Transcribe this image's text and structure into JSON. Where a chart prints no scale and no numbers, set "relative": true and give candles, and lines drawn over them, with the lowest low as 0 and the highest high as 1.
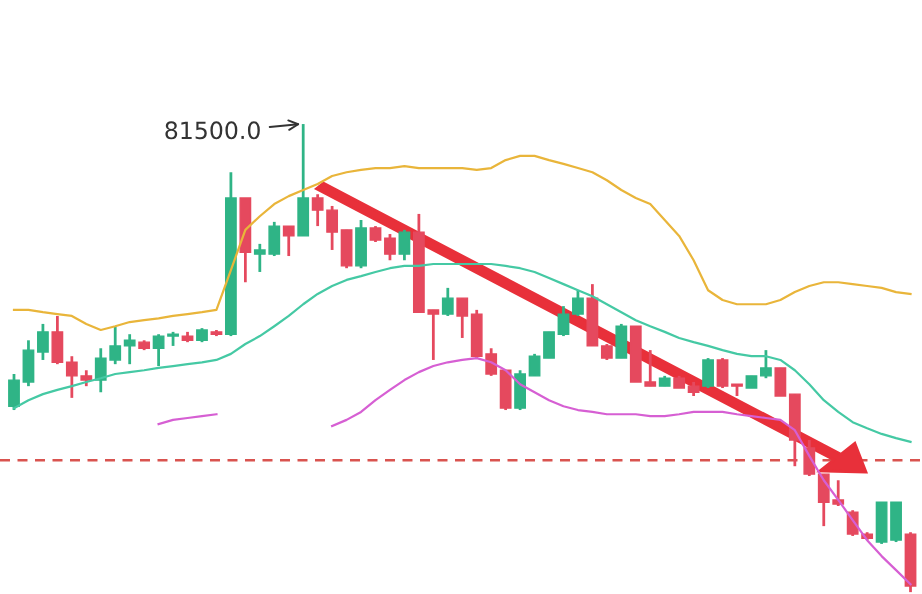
{
  "chart_data": {
    "type": "candlestick",
    "relative": true,
    "categories": [
      null,
      null,
      null,
      null,
      null,
      null,
      null,
      null,
      null,
      null,
      null,
      null,
      null,
      null,
      null,
      null,
      null,
      null,
      null,
      null,
      null,
      null,
      null,
      null,
      null,
      null,
      null,
      null,
      null,
      null,
      null,
      null,
      null,
      null,
      null,
      null,
      null,
      null,
      null,
      null,
      null,
      null,
      null,
      null,
      null,
      null,
      null,
      null,
      null,
      null,
      null,
      null,
      null,
      null,
      null,
      null,
      null,
      null,
      null,
      null,
      null,
      null,
      null
    ],
    "ohlc": [
      [
        0.397,
        0.466,
        0.389,
        0.453
      ],
      [
        0.449,
        0.538,
        0.44,
        0.517
      ],
      [
        0.513,
        0.573,
        0.496,
        0.556
      ],
      [
        0.556,
        0.59,
        0.487,
        0.491
      ],
      [
        0.491,
        0.504,
        0.415,
        0.462
      ],
      [
        0.462,
        0.474,
        0.44,
        0.453
      ],
      [
        0.453,
        0.521,
        0.427,
        0.5
      ],
      [
        0.496,
        0.568,
        0.487,
        0.526
      ],
      [
        0.526,
        0.551,
        0.487,
        0.538
      ],
      [
        0.534,
        0.538,
        0.517,
        0.521
      ],
      [
        0.521,
        0.551,
        0.483,
        0.547
      ],
      [
        0.547,
        0.556,
        0.526,
        0.551
      ],
      [
        0.547,
        0.556,
        0.534,
        0.538
      ],
      [
        0.538,
        0.564,
        0.534,
        0.56
      ],
      [
        0.556,
        0.56,
        0.547,
        0.551
      ],
      [
        0.551,
        0.897,
        0.547,
        0.842
      ],
      [
        0.842,
        0.842,
        0.662,
        0.726
      ],
      [
        0.722,
        0.744,
        0.684,
        0.731
      ],
      [
        0.722,
        0.791,
        0.718,
        0.782
      ],
      [
        0.782,
        0.782,
        0.718,
        0.761
      ],
      [
        0.761,
        1,
        0.761,
        0.842
      ],
      [
        0.842,
        0.85,
        0.782,
        0.816
      ],
      [
        0.816,
        0.825,
        0.731,
        0.769
      ],
      [
        0.774,
        0.774,
        0.692,
        0.697
      ],
      [
        0.697,
        0.795,
        0.692,
        0.778
      ],
      [
        0.778,
        0.782,
        0.748,
        0.752
      ],
      [
        0.756,
        0.765,
        0.709,
        0.722
      ],
      [
        0.722,
        0.774,
        0.709,
        0.769
      ],
      [
        0.769,
        0.808,
        0.598,
        0.598
      ],
      [
        0.603,
        0.603,
        0.496,
        0.594
      ],
      [
        0.594,
        0.65,
        0.59,
        0.628
      ],
      [
        0.628,
        0.628,
        0.543,
        0.59
      ],
      [
        0.594,
        0.603,
        0.5,
        0.504
      ],
      [
        0.509,
        0.521,
        0.462,
        0.466
      ],
      [
        0.474,
        0.474,
        0.389,
        0.393
      ],
      [
        0.393,
        0.474,
        0.389,
        0.466
      ],
      [
        0.462,
        0.509,
        0.462,
        0.504
      ],
      [
        0.5,
        0.556,
        0.5,
        0.556
      ],
      [
        0.551,
        0.611,
        0.547,
        0.594
      ],
      [
        0.594,
        0.645,
        0.59,
        0.628
      ],
      [
        0.628,
        0.658,
        0.526,
        0.526
      ],
      [
        0.526,
        0.53,
        0.496,
        0.5
      ],
      [
        0.5,
        0.573,
        0.5,
        0.568
      ],
      [
        0.568,
        0.568,
        0.449,
        0.449
      ],
      [
        0.449,
        0.517,
        0.44,
        0.44
      ],
      [
        0.44,
        0.462,
        0.44,
        0.457
      ],
      [
        0.457,
        0.462,
        0.436,
        0.436
      ],
      [
        0.44,
        0.449,
        0.419,
        0.427
      ],
      [
        0.44,
        0.5,
        0.436,
        0.496
      ],
      [
        0.496,
        0.5,
        0.436,
        0.44
      ],
      [
        0.444,
        0.444,
        0.419,
        0.44
      ],
      [
        0.436,
        0.462,
        0.436,
        0.462
      ],
      [
        0.462,
        0.517,
        0.457,
        0.479
      ],
      [
        0.479,
        0.479,
        0.419,
        0.419
      ],
      [
        0.423,
        0.423,
        0.269,
        0.325
      ],
      [
        0.308,
        0.325,
        0.248,
        0.252
      ],
      [
        0.252,
        0.252,
        0.141,
        0.192
      ],
      [
        0.197,
        0.239,
        0.184,
        0.188
      ],
      [
        0.171,
        0.175,
        0.12,
        0.124
      ],
      [
        0.124,
        0.128,
        0.111,
        0.115
      ],
      [
        0.107,
        0.192,
        0.103,
        0.192
      ],
      [
        0.111,
        0.192,
        0.107,
        0.192
      ],
      [
        0.124,
        0.128,
        0,
        0.013
      ]
    ],
    "series": [
      {
        "type": "line",
        "color": "#e9b53a",
        "values": [
          0.603,
          0.603,
          0.598,
          0.594,
          0.59,
          0.573,
          0.56,
          0.568,
          0.577,
          0.581,
          0.585,
          0.59,
          0.594,
          0.598,
          0.603,
          0.688,
          0.774,
          0.803,
          0.829,
          0.846,
          0.859,
          0.872,
          0.889,
          0.897,
          0.902,
          0.906,
          0.906,
          0.91,
          0.906,
          0.906,
          0.906,
          0.906,
          0.902,
          0.906,
          0.923,
          0.932,
          0.932,
          0.923,
          0.915,
          0.906,
          0.897,
          0.88,
          0.859,
          0.842,
          0.829,
          0.795,
          0.761,
          0.709,
          0.645,
          0.624,
          0.615,
          0.615,
          0.615,
          0.624,
          0.641,
          0.654,
          0.662,
          0.662,
          0.658,
          0.654,
          0.65,
          0.641,
          0.637
        ]
      },
      {
        "type": "line",
        "color": "#45c9a4",
        "values": [
          0.393,
          0.41,
          0.423,
          0.432,
          0.44,
          0.449,
          0.457,
          0.466,
          0.47,
          0.474,
          0.479,
          0.483,
          0.487,
          0.491,
          0.496,
          0.509,
          0.53,
          0.547,
          0.568,
          0.59,
          0.615,
          0.637,
          0.654,
          0.667,
          0.675,
          0.684,
          0.692,
          0.697,
          0.697,
          0.701,
          0.701,
          0.701,
          0.701,
          0.701,
          0.697,
          0.692,
          0.684,
          0.671,
          0.658,
          0.645,
          0.632,
          0.615,
          0.598,
          0.581,
          0.568,
          0.556,
          0.543,
          0.534,
          0.526,
          0.517,
          0.509,
          0.504,
          0.504,
          0.496,
          0.474,
          0.444,
          0.41,
          0.385,
          0.363,
          0.35,
          0.338,
          0.329,
          0.321
        ]
      },
      {
        "type": "line",
        "color": "#d65fd3",
        "values": [
          null,
          null,
          null,
          null,
          null,
          null,
          null,
          null,
          null,
          null,
          0.359,
          0.368,
          0.372,
          0.376,
          0.38,
          null,
          null,
          null,
          null,
          null,
          null,
          null,
          0.355,
          0.368,
          0.385,
          0.41,
          0.432,
          0.453,
          0.47,
          0.483,
          0.491,
          0.496,
          0.5,
          0.491,
          0.474,
          0.444,
          0.427,
          0.41,
          0.397,
          0.389,
          0.385,
          0.38,
          0.38,
          0.38,
          0.376,
          0.376,
          0.38,
          0.385,
          0.385,
          0.385,
          0.38,
          0.376,
          0.372,
          0.368,
          0.346,
          0.291,
          0.239,
          0.197,
          0.154,
          0.111,
          0.077,
          0.047,
          0.017
        ]
      }
    ],
    "ref_lines": [
      {
        "axis": "y",
        "value": 0.282,
        "color": "#d9534f",
        "line_style": "dashed"
      }
    ],
    "annotations": [
      "81500.0"
    ]
  }
}
